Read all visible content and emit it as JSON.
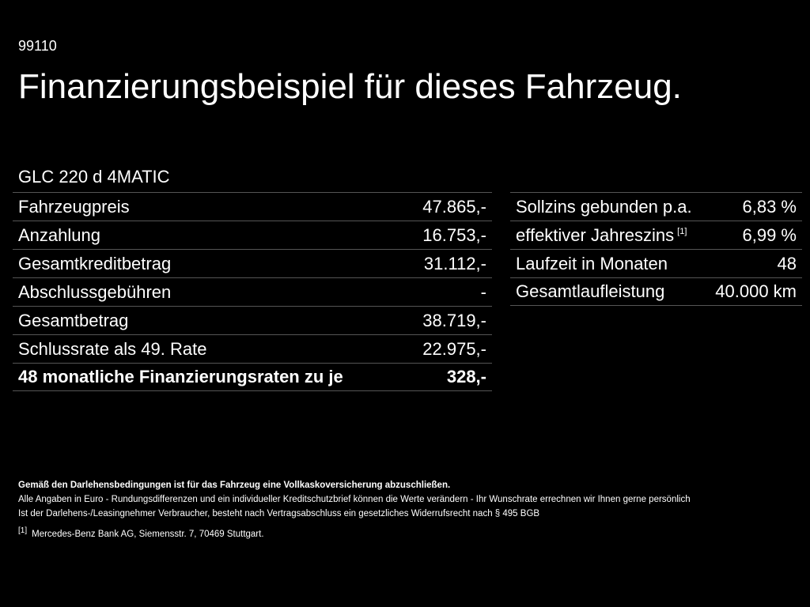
{
  "code": "99110",
  "title": "Finanzierungsbeispiel für dieses Fahrzeug.",
  "model": "GLC 220 d 4MATIC",
  "left_rows": [
    {
      "label": "Fahrzeugpreis",
      "value": "47.865,-"
    },
    {
      "label": "Anzahlung",
      "value": "16.753,-"
    },
    {
      "label": "Gesamtkreditbetrag",
      "value": "31.112,-"
    },
    {
      "label": "Abschlussgebühren",
      "value": "-"
    },
    {
      "label": "Gesamtbetrag",
      "value": "38.719,-"
    },
    {
      "label": "Schlussrate als 49. Rate",
      "value": "22.975,-"
    },
    {
      "label": "48 monatliche Finanzierungsraten zu je",
      "value": "328,-"
    }
  ],
  "right_rows": [
    {
      "label": "Sollzins gebunden p.a.",
      "value": "6,83 %"
    },
    {
      "label": "effektiver Jahreszins",
      "sup": "[1]",
      "value": "6,99 %"
    },
    {
      "label": "Laufzeit in Monaten",
      "value": "48"
    },
    {
      "label": "Gesamtlaufleistung",
      "value": "40.000 km"
    }
  ],
  "notes": {
    "bold_line": "Gemäß den Darlehensbedingungen ist für das Fahrzeug eine Vollkaskoversicherung abzuschließen.",
    "line1": "Alle Angaben in Euro - Rundungsdifferenzen und ein individueller Kreditschutzbrief können die Werte verändern - Ihr Wunschrate errechnen wir Ihnen gerne persönlich",
    "line2": "Ist der Darlehens-/Leasingnehmer Verbraucher, besteht nach Vertragsabschluss ein gesetzliches Widerrufsrecht nach § 495 BGB",
    "footnote_marker": "[1]",
    "footnote_text": "Mercedes-Benz Bank AG, Siemensstr. 7, 70469 Stuttgart."
  }
}
